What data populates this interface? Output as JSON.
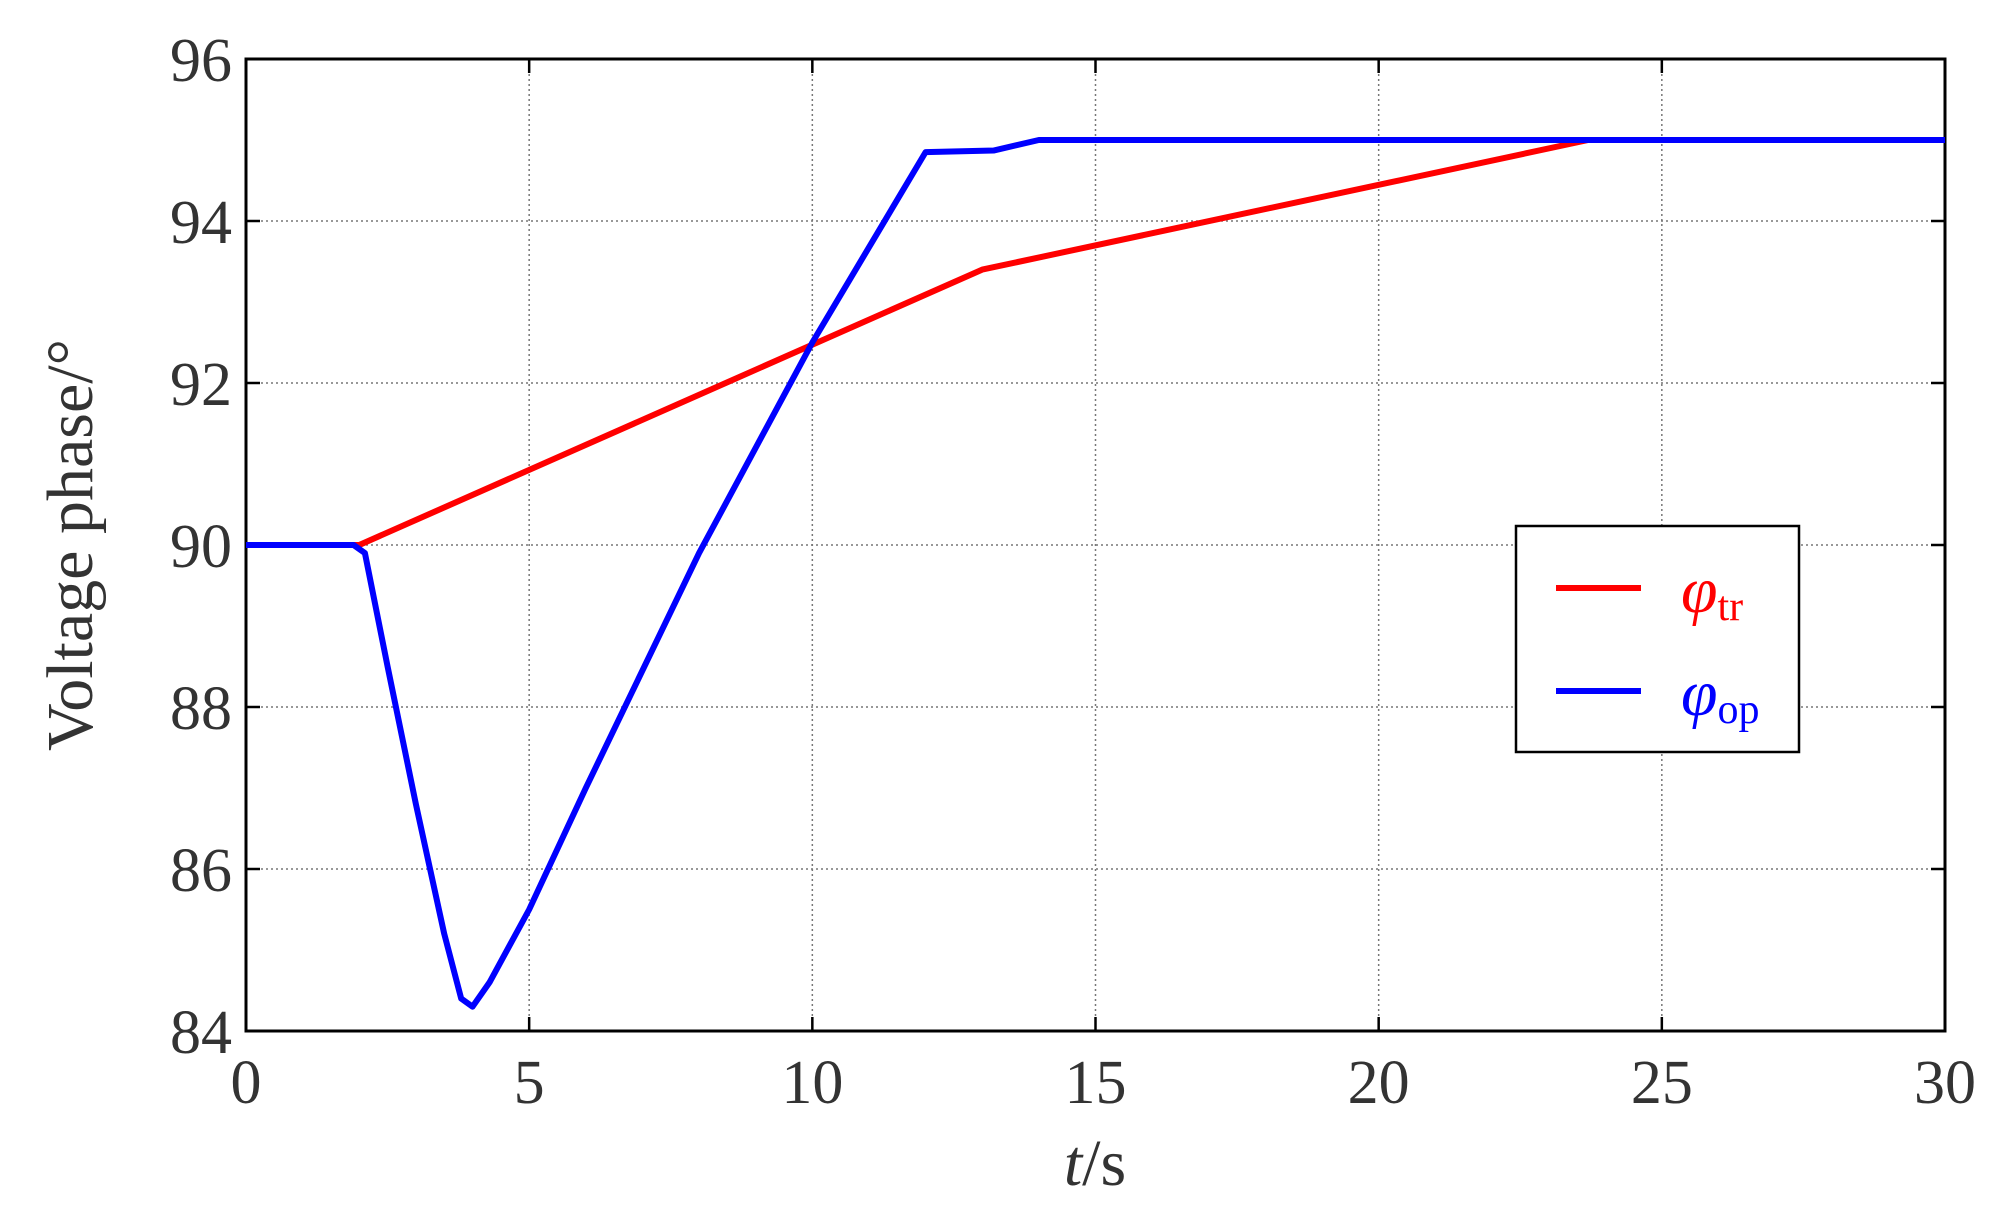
{
  "chart_data": {
    "type": "line",
    "xlabel": "t/s",
    "ylabel": "Voltage phase/°",
    "xlim": [
      0,
      30
    ],
    "xticks": [
      0,
      5,
      10,
      15,
      20,
      25,
      30
    ],
    "ylim": [
      84,
      96
    ],
    "yticks": [
      84,
      86,
      88,
      90,
      92,
      94,
      96
    ],
    "grid": true,
    "legend": "right",
    "series": [
      {
        "name": "φtr",
        "color": "#ff0000",
        "x": [
          0,
          2,
          13,
          23.7,
          30
        ],
        "values": [
          90,
          90,
          93.4,
          95,
          95
        ]
      },
      {
        "name": "φop",
        "color": "#0000ff",
        "x": [
          0,
          1.9,
          2.1,
          2.5,
          3,
          3.5,
          3.8,
          4,
          4.3,
          5,
          6,
          8,
          10,
          12,
          13.2,
          14,
          30
        ],
        "values": [
          90,
          90,
          89.9,
          88.5,
          86.8,
          85.2,
          84.4,
          84.3,
          84.6,
          85.5,
          87.0,
          89.9,
          92.5,
          94.85,
          94.87,
          95,
          95
        ]
      }
    ]
  }
}
